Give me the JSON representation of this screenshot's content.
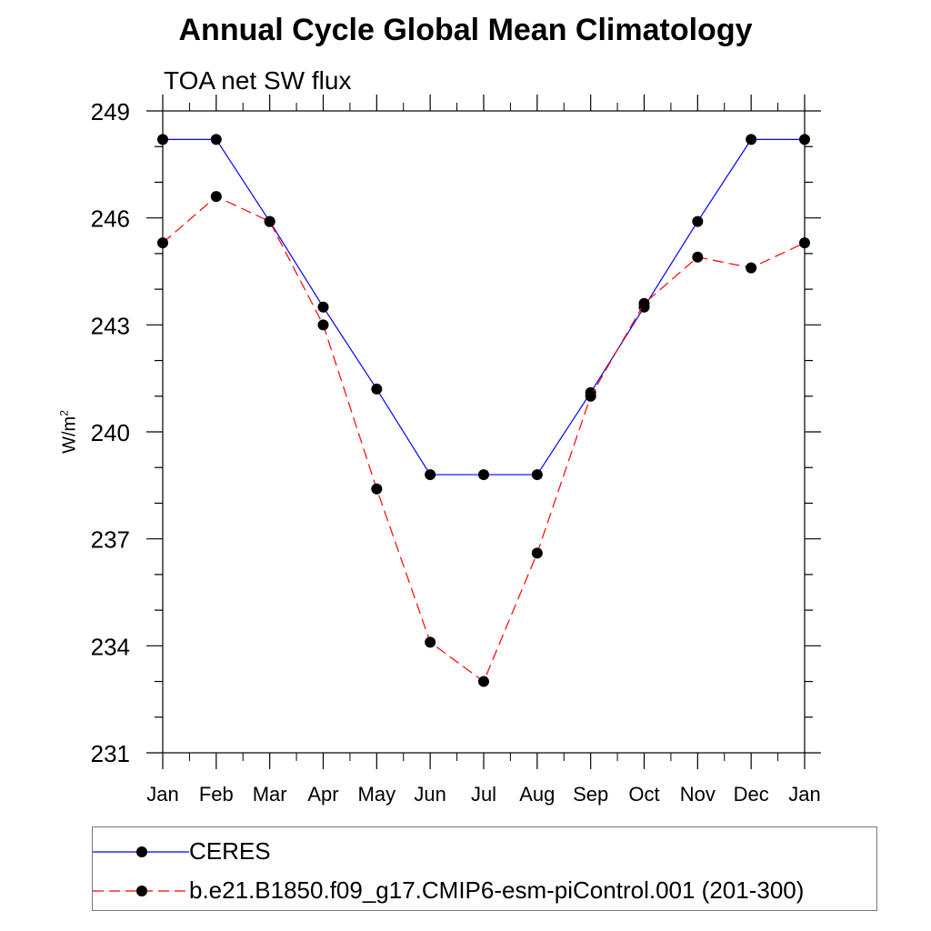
{
  "chart_data": {
    "type": "line",
    "title": "Annual Cycle Global Mean Climatology",
    "subtitle": "TOA net SW flux",
    "ylabel_base": "W/m",
    "ylabel_sup": "2",
    "xlabel": "",
    "categories": [
      "Jan",
      "Feb",
      "Mar",
      "Apr",
      "May",
      "Jun",
      "Jul",
      "Aug",
      "Sep",
      "Oct",
      "Nov",
      "Dec",
      "Jan"
    ],
    "ylim": [
      231,
      249
    ],
    "yticks": [
      "231",
      "234",
      "237",
      "240",
      "243",
      "246",
      "249"
    ],
    "series": [
      {
        "name": "CERES",
        "color": "#0000ff",
        "dash": "solid",
        "values": [
          248.2,
          248.2,
          245.9,
          243.5,
          241.2,
          238.8,
          238.8,
          238.8,
          241.1,
          243.5,
          245.9,
          248.2,
          248.2
        ]
      },
      {
        "name": "b.e21.B1850.f09_g17.CMIP6-esm-piControl.001 (201-300)",
        "color": "#ff0000",
        "dash": "dashed",
        "values": [
          245.3,
          246.6,
          245.9,
          243.0,
          238.4,
          234.1,
          233.0,
          236.6,
          241.0,
          243.6,
          244.9,
          244.6,
          245.3
        ]
      }
    ],
    "legend_position": "bottom"
  }
}
